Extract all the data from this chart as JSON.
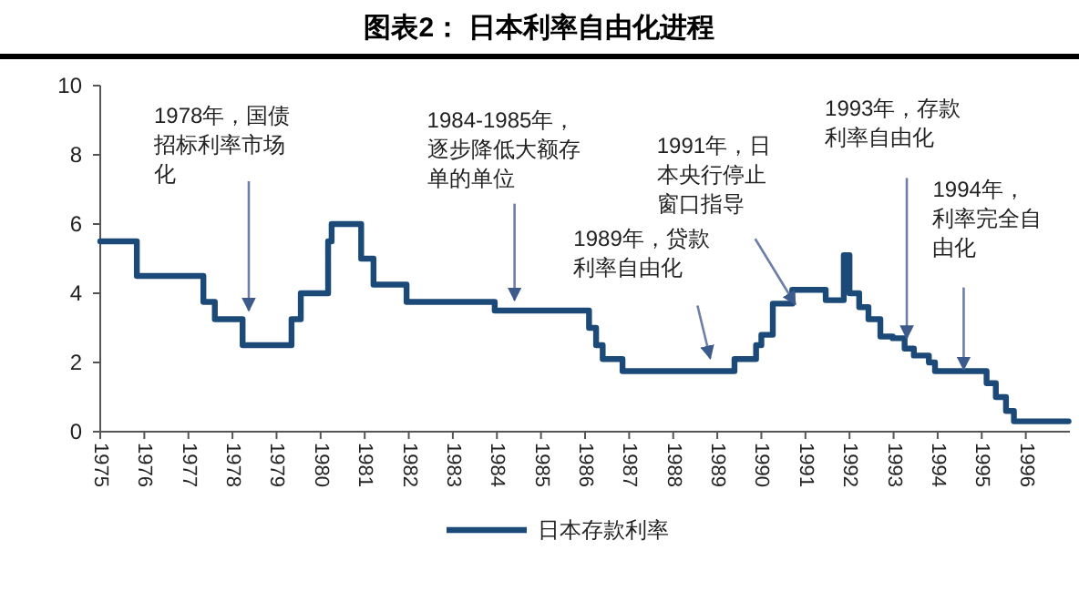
{
  "chart_data": {
    "type": "step",
    "title": "图表2：  日本利率自由化进程",
    "x": [
      1975.0,
      1975.83,
      1977.34,
      1977.6,
      1978.23,
      1979.34,
      1979.55,
      1980.17,
      1980.25,
      1980.92,
      1981.2,
      1981.95,
      1983.95,
      1986.09,
      1986.25,
      1986.4,
      1986.85,
      1989.39,
      1989.88,
      1990.0,
      1990.26,
      1990.7,
      1991.46,
      1991.87,
      1992.0,
      1992.22,
      1992.43,
      1992.7,
      1992.98,
      1993.25,
      1993.46,
      1993.8,
      1993.94,
      1995.11,
      1995.32,
      1995.55,
      1995.73,
      1996.97
    ],
    "series": [
      {
        "name": "日本存款利率",
        "color": "#1b4a78",
        "values": [
          5.5,
          4.5,
          3.75,
          3.25,
          2.5,
          3.25,
          4.0,
          5.5,
          6.0,
          5.0,
          4.25,
          3.75,
          3.5,
          3.0,
          2.5,
          2.1,
          1.75,
          2.1,
          2.5,
          2.8,
          3.7,
          4.1,
          3.8,
          5.1,
          4.0,
          3.6,
          3.25,
          2.75,
          2.7,
          2.4,
          2.2,
          2.0,
          1.75,
          1.4,
          1.0,
          0.6,
          0.3,
          0.3
        ]
      }
    ],
    "xlim": [
      1975,
      1997
    ],
    "xticks": [
      1975,
      1976,
      1977,
      1978,
      1979,
      1980,
      1981,
      1982,
      1983,
      1984,
      1985,
      1986,
      1987,
      1988,
      1989,
      1990,
      1991,
      1992,
      1993,
      1994,
      1995,
      1996
    ],
    "ylim": [
      0,
      10
    ],
    "yticks": [
      0,
      2,
      4,
      6,
      8,
      10
    ],
    "grid": false,
    "legend": "bottom",
    "marker": "none",
    "line_style": "solid",
    "annotations": [
      {
        "text": "1978年，国债招标利率市场化",
        "x": 1978.37,
        "y": 3.5
      },
      {
        "text": "1984-1985年，逐步降低大额存单的单位",
        "x": 1984.4,
        "y": 3.8
      },
      {
        "text": "1989年，贷款利率自由化",
        "x": 1988.84,
        "y": 1.75
      },
      {
        "text": "1991年，日本央行停止窗口指导",
        "x": 1990.77,
        "y": 4.1
      },
      {
        "text": "1993年，存款利率自由化",
        "x": 1993.3,
        "y": 2.7
      },
      {
        "text": "1994年，利率完全自由化",
        "x": 1994.59,
        "y": 1.8
      }
    ]
  }
}
